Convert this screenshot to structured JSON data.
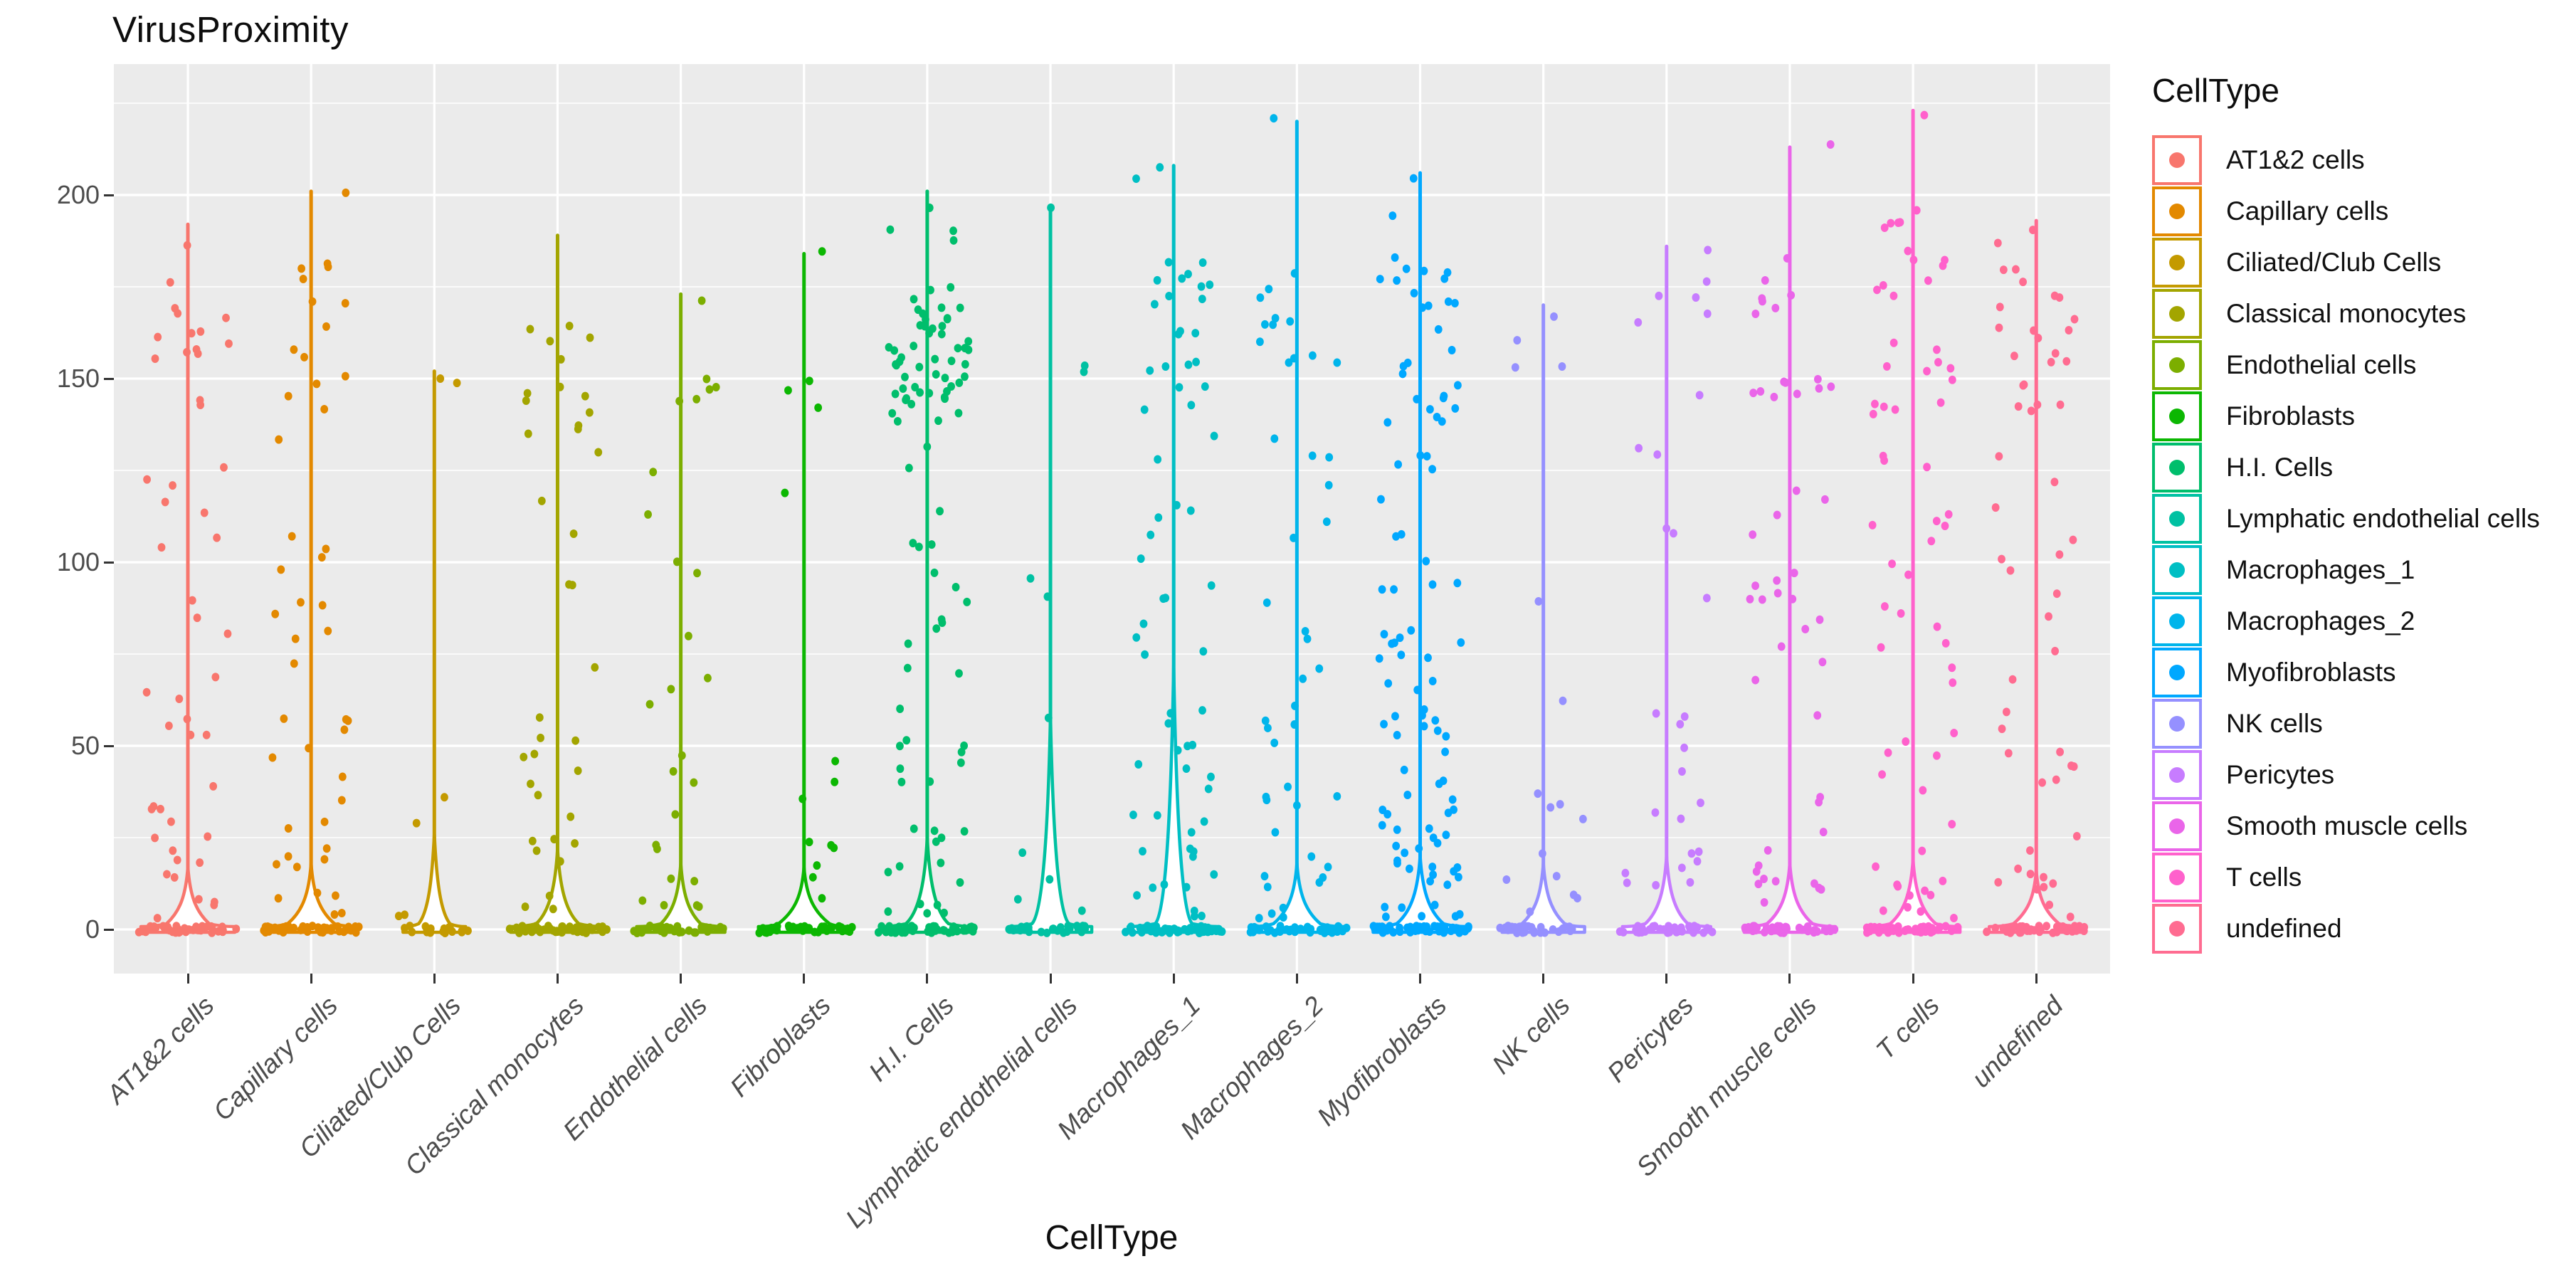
{
  "title": "VirusProximity",
  "x_axis": {
    "title": "CellType"
  },
  "legend": {
    "title": "CellType",
    "items": [
      {
        "label": "AT1&2 cells",
        "color": "#F8766D"
      },
      {
        "label": "Capillary cells",
        "color": "#E38900"
      },
      {
        "label": "Ciliated/Club Cells",
        "color": "#C49A00"
      },
      {
        "label": "Classical monocytes",
        "color": "#A3A500"
      },
      {
        "label": "Endothelial cells",
        "color": "#7CAE00"
      },
      {
        "label": "Fibroblasts",
        "color": "#0CB702"
      },
      {
        "label": "H.I. Cells",
        "color": "#00BE6C"
      },
      {
        "label": "Lymphatic endothelial cells",
        "color": "#00C1A2"
      },
      {
        "label": "Macrophages_1",
        "color": "#00BFC4"
      },
      {
        "label": "Macrophages_2",
        "color": "#00B5EB"
      },
      {
        "label": "Myofibroblasts",
        "color": "#00A8FF"
      },
      {
        "label": "NK cells",
        "color": "#9590FF"
      },
      {
        "label": "Pericytes",
        "color": "#C77CFF"
      },
      {
        "label": "Smooth muscle cells",
        "color": "#EA65E9"
      },
      {
        "label": "T cells",
        "color": "#FF61CC"
      },
      {
        "label": "undefined",
        "color": "#FF6C91"
      }
    ]
  },
  "style_colors": {
    "panel_background": "#EBEBEB",
    "gridline": "#FFFFFF",
    "tick_mark": "#333333",
    "tick_text": "#4D4D4D",
    "title_text": "#0D0D0D",
    "violin_fill": "#FFFFFF"
  },
  "chart_data": {
    "type": "violin",
    "title": "VirusProximity",
    "xlabel": "CellType",
    "ylabel": "",
    "legend_position": "right",
    "grid": true,
    "y_axis": {
      "ticks": [
        0,
        50,
        100,
        150,
        200
      ],
      "minor_ticks": [
        25,
        75,
        125,
        175,
        225
      ],
      "ylim": [
        -12,
        235.5
      ]
    },
    "categories": [
      "AT1&2 cells",
      "Capillary cells",
      "Ciliated/Club Cells",
      "Classical monocytes",
      "Endothelial cells",
      "Fibroblasts",
      "H.I. Cells",
      "Lymphatic endothelial cells",
      "Macrophages_1",
      "Macrophages_2",
      "Myofibroblasts",
      "NK cells",
      "Pericytes",
      "Smooth muscle cells",
      "T cells",
      "undefined"
    ],
    "series": [
      {
        "name": "AT1&2 cells",
        "color": "#F8766D",
        "max": 192,
        "bell": {
          "apex": 17,
          "halfwidth": 30
        },
        "band": {
          "n": 46,
          "halfwidth": 70
        },
        "seed": 11,
        "clusters": [
          [
            140,
            170,
            13
          ],
          [
            175,
            192,
            2
          ],
          [
            85,
            135,
            8
          ],
          [
            30,
            85,
            13
          ],
          [
            3,
            30,
            12
          ]
        ]
      },
      {
        "name": "Capillary cells",
        "color": "#E38900",
        "max": 201,
        "bell": {
          "apex": 18,
          "halfwidth": 33
        },
        "band": {
          "n": 46,
          "halfwidth": 70
        },
        "seed": 48,
        "clusters": [
          [
            140,
            183,
            13
          ],
          [
            198,
            201,
            1
          ],
          [
            60,
            135,
            11
          ],
          [
            30,
            60,
            8
          ],
          [
            3,
            30,
            12
          ]
        ]
      },
      {
        "name": "Ciliated/Club Cells",
        "color": "#C49A00",
        "max": 152,
        "bell": {
          "apex": 26,
          "halfwidth": 22
        },
        "band": {
          "n": 18,
          "halfwidth": 48
        },
        "seed": 85,
        "clusters": [
          [
            145,
            152,
            2
          ],
          [
            28,
            36,
            2
          ],
          [
            3,
            10,
            2
          ]
        ]
      },
      {
        "name": "Classical monocytes",
        "color": "#A3A500",
        "max": 189,
        "bell": {
          "apex": 22,
          "halfwidth": 30
        },
        "band": {
          "n": 44,
          "halfwidth": 70
        },
        "seed": 122,
        "clusters": [
          [
            140,
            165,
            10
          ],
          [
            115,
            139,
            5
          ],
          [
            60,
            110,
            4
          ],
          [
            30,
            60,
            9
          ],
          [
            3,
            30,
            8
          ]
        ]
      },
      {
        "name": "Endothelial cells",
        "color": "#7CAE00",
        "max": 173,
        "bell": {
          "apex": 18,
          "halfwidth": 28
        },
        "band": {
          "n": 36,
          "halfwidth": 66
        },
        "seed": 159,
        "clusters": [
          [
            140,
            152,
            5
          ],
          [
            170,
            174,
            1
          ],
          [
            95,
            125,
            4
          ],
          [
            30,
            90,
            8
          ],
          [
            3,
            30,
            8
          ]
        ]
      },
      {
        "name": "Fibroblasts",
        "color": "#0CB702",
        "max": 184,
        "bell": {
          "apex": 17,
          "halfwidth": 36
        },
        "band": {
          "n": 40,
          "halfwidth": 68
        },
        "seed": 196,
        "clusters": [
          [
            182,
            186,
            1
          ],
          [
            140,
            150,
            3
          ],
          [
            118,
            126,
            1
          ],
          [
            35,
            50,
            3
          ],
          [
            3,
            25,
            6
          ]
        ]
      },
      {
        "name": "H.I. Cells",
        "color": "#00BE6C",
        "max": 201,
        "bell": {
          "apex": 25,
          "halfwidth": 30
        },
        "band": {
          "n": 50,
          "halfwidth": 70
        },
        "seed": 233,
        "clusters": [
          [
            138,
            178,
            52
          ],
          [
            180,
            201,
            4
          ],
          [
            80,
            135,
            12
          ],
          [
            30,
            80,
            12
          ],
          [
            3,
            30,
            14
          ]
        ]
      },
      {
        "name": "Lymphatic endothelial cells",
        "color": "#00C1A2",
        "max": 196,
        "bell": {
          "apex": 58,
          "halfwidth": 26
        },
        "band": {
          "n": 28,
          "halfwidth": 62
        },
        "seed": 270,
        "clusters": [
          [
            194,
            197,
            1
          ],
          [
            145,
            162,
            2
          ],
          [
            45,
            100,
            3
          ],
          [
            3,
            30,
            4
          ]
        ]
      },
      {
        "name": "Macrophages_1",
        "color": "#00BFC4",
        "max": 208,
        "bell": {
          "apex": 72,
          "halfwidth": 26
        },
        "band": {
          "n": 46,
          "halfwidth": 68
        },
        "seed": 307,
        "clusters": [
          [
            140,
            185,
            21
          ],
          [
            190,
            208,
            2
          ],
          [
            60,
            135,
            14
          ],
          [
            22,
            60,
            14
          ],
          [
            3,
            22,
            12
          ]
        ]
      },
      {
        "name": "Macrophages_2",
        "color": "#00B5EB",
        "max": 220,
        "bell": {
          "apex": 18,
          "halfwidth": 33
        },
        "band": {
          "n": 44,
          "halfwidth": 70
        },
        "seed": 344,
        "clusters": [
          [
            218,
            221,
            1
          ],
          [
            140,
            190,
            12
          ],
          [
            60,
            135,
            12
          ],
          [
            22,
            60,
            10
          ],
          [
            3,
            22,
            10
          ]
        ]
      },
      {
        "name": "Myofibroblasts",
        "color": "#00A8FF",
        "max": 206,
        "bell": {
          "apex": 20,
          "halfwidth": 33
        },
        "band": {
          "n": 52,
          "halfwidth": 70
        },
        "seed": 381,
        "clusters": [
          [
            138,
            180,
            25
          ],
          [
            182,
            206,
            3
          ],
          [
            60,
            135,
            24
          ],
          [
            22,
            60,
            27
          ],
          [
            3,
            22,
            18
          ]
        ]
      },
      {
        "name": "NK cells",
        "color": "#9590FF",
        "max": 170,
        "bell": {
          "apex": 18,
          "halfwidth": 30
        },
        "band": {
          "n": 30,
          "halfwidth": 62
        },
        "seed": 418,
        "clusters": [
          [
            148,
            170,
            4
          ],
          [
            60,
            100,
            2
          ],
          [
            22,
            45,
            4
          ],
          [
            3,
            22,
            6
          ]
        ]
      },
      {
        "name": "Pericytes",
        "color": "#C77CFF",
        "max": 186,
        "bell": {
          "apex": 20,
          "halfwidth": 30
        },
        "band": {
          "n": 40,
          "halfwidth": 66
        },
        "seed": 455,
        "clusters": [
          [
            145,
            186,
            7
          ],
          [
            90,
            140,
            5
          ],
          [
            22,
            60,
            8
          ],
          [
            3,
            22,
            8
          ]
        ]
      },
      {
        "name": "Smooth muscle cells",
        "color": "#EA65E9",
        "max": 213,
        "bell": {
          "apex": 18,
          "halfwidth": 32
        },
        "band": {
          "n": 44,
          "halfwidth": 68
        },
        "seed": 492,
        "clusters": [
          [
            210,
            214,
            1
          ],
          [
            140,
            190,
            16
          ],
          [
            90,
            135,
            8
          ],
          [
            22,
            90,
            12
          ],
          [
            3,
            22,
            10
          ]
        ]
      },
      {
        "name": "T cells",
        "color": "#FF61CC",
        "max": 223,
        "bell": {
          "apex": 19,
          "halfwidth": 32
        },
        "band": {
          "n": 48,
          "halfwidth": 70
        },
        "seed": 529,
        "clusters": [
          [
            220,
            223,
            1
          ],
          [
            140,
            196,
            25
          ],
          [
            90,
            135,
            10
          ],
          [
            22,
            90,
            14
          ],
          [
            3,
            22,
            12
          ]
        ]
      },
      {
        "name": "undefined",
        "color": "#FF6C91",
        "max": 193,
        "bell": {
          "apex": 16,
          "halfwidth": 32
        },
        "band": {
          "n": 46,
          "halfwidth": 70
        },
        "seed": 566,
        "clusters": [
          [
            140,
            180,
            21
          ],
          [
            182,
            193,
            2
          ],
          [
            90,
            135,
            8
          ],
          [
            22,
            90,
            12
          ],
          [
            3,
            22,
            10
          ]
        ]
      }
    ]
  }
}
